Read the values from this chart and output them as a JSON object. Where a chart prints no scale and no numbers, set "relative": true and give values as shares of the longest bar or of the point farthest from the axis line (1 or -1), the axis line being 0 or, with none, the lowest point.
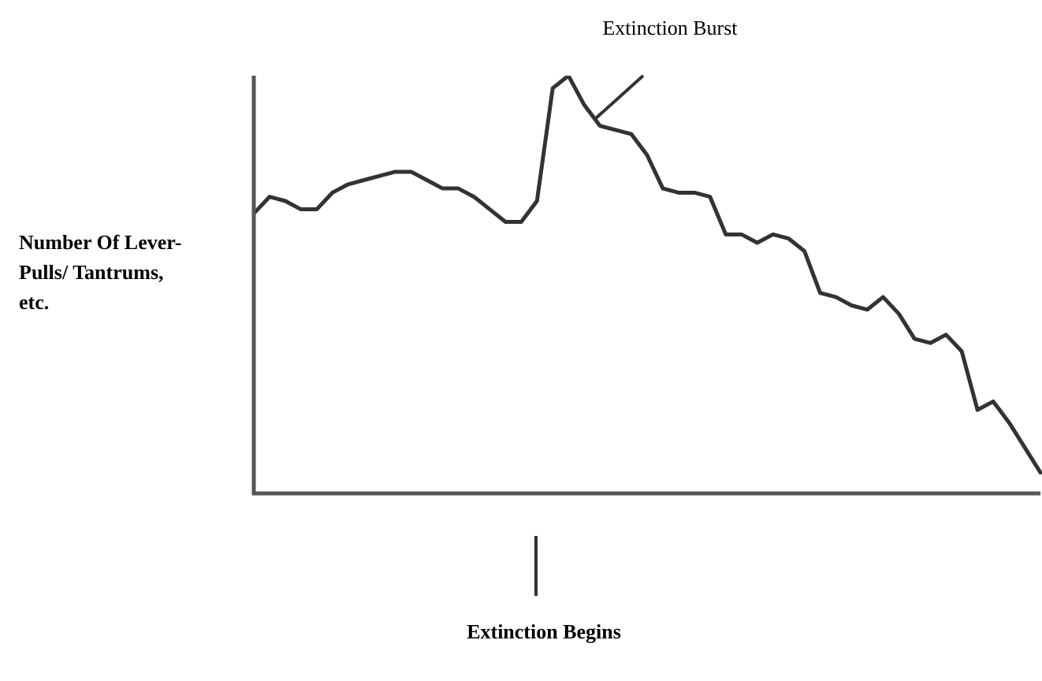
{
  "chart_data": {
    "type": "line",
    "relative": true,
    "ylabel": "Number Of Lever-Pulls/ Tantrums, etc.",
    "annotations": [
      "Extinction Burst",
      "Extinction Begins"
    ],
    "categories": [
      null,
      null,
      null,
      null,
      null,
      null,
      null,
      null,
      null,
      null,
      null,
      null,
      null,
      null,
      null,
      null,
      null,
      null,
      null,
      null,
      null,
      null,
      null,
      null,
      null,
      null,
      null,
      null,
      null,
      null,
      null,
      null,
      null,
      null,
      null,
      null,
      null,
      null,
      null,
      null,
      null,
      null,
      null,
      null,
      null,
      null,
      null,
      null,
      null,
      null,
      null
    ],
    "color": "#333333",
    "values": [
      0.67,
      0.71,
      0.7,
      0.68,
      0.68,
      0.72,
      0.74,
      0.75,
      0.76,
      0.77,
      0.77,
      0.75,
      0.73,
      0.73,
      0.71,
      0.68,
      0.65,
      0.65,
      0.7,
      0.97,
      1.0,
      0.93,
      0.88,
      0.87,
      0.86,
      0.81,
      0.73,
      0.72,
      0.72,
      0.71,
      0.62,
      0.62,
      0.6,
      0.62,
      0.61,
      0.58,
      0.48,
      0.47,
      0.45,
      0.44,
      0.47,
      0.43,
      0.37,
      0.36,
      0.38,
      0.34,
      0.2,
      0.22,
      0.17,
      0.11,
      0.05
    ]
  }
}
